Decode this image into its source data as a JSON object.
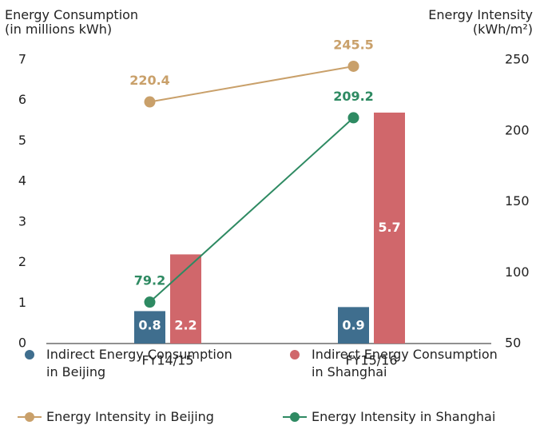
{
  "chart_data": {
    "type": "bar",
    "y_label": [
      "Energy Consumption",
      "(in millions kWh)"
    ],
    "y2_label": [
      "Energy Intensity",
      "(kWh/m²)"
    ],
    "categories": [
      "FY14/15",
      "FY15/16"
    ],
    "ylim": [
      0,
      7
    ],
    "yticks": [
      0,
      1,
      2,
      3,
      4,
      5,
      6,
      7
    ],
    "y2lim": [
      50,
      250
    ],
    "y2ticks": [
      50,
      100,
      150,
      200,
      250
    ],
    "series": [
      {
        "name": "Indirect Energy Consumption in Beijing",
        "type": "bar",
        "color": "#3f6e8e",
        "values": [
          0.8,
          0.9
        ]
      },
      {
        "name": "Indirect Energy Consumption in Shanghai",
        "type": "bar",
        "color": "#d0676b",
        "values": [
          2.2,
          5.7
        ]
      },
      {
        "name": "Energy Intensity in Beijing",
        "type": "line",
        "axis": "y2",
        "color": "#c9a06a",
        "values": [
          220.4,
          245.5
        ]
      },
      {
        "name": "Energy Intensity in Shanghai",
        "type": "line",
        "axis": "y2",
        "color": "#2e8a62",
        "values": [
          79.2,
          209.2
        ]
      }
    ]
  }
}
